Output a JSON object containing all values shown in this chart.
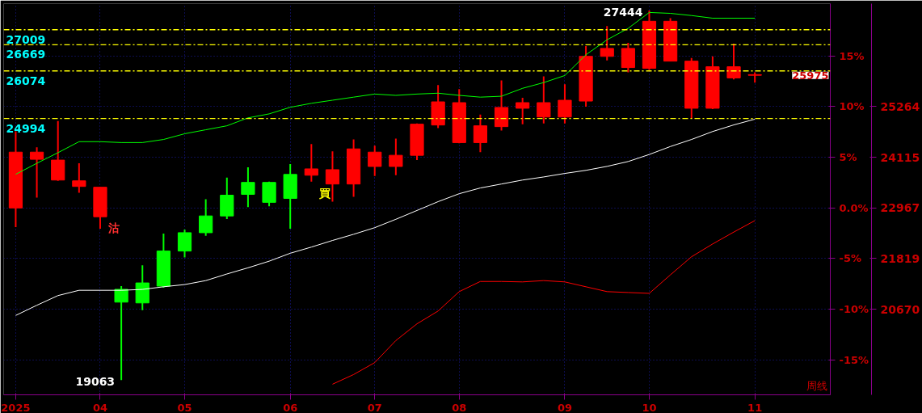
{
  "chart_data": {
    "type": "candlestick",
    "x": [
      "2025-03-07",
      "2025-03-14",
      "2025-03-21",
      "2025-03-28",
      "2025-04-04",
      "2025-04-11",
      "2025-04-18",
      "2025-04-25",
      "2025-05-02",
      "2025-05-09",
      "2025-05-16",
      "2025-05-23",
      "2025-05-30",
      "2025-06-06",
      "2025-06-13",
      "2025-06-20",
      "2025-06-27",
      "2025-07-04",
      "2025-07-11",
      "2025-07-18",
      "2025-07-25",
      "2025-08-01",
      "2025-08-08",
      "2025-08-15",
      "2025-08-22",
      "2025-08-29",
      "2025-09-05",
      "2025-09-12",
      "2025-09-19",
      "2025-09-26",
      "2025-10-03",
      "2025-10-10",
      "2025-10-17",
      "2025-10-24",
      "2025-10-31",
      "2025-11-07"
    ],
    "ohlc": [
      [
        24233,
        24704,
        22533,
        22967
      ],
      [
        24233,
        24342,
        23202,
        24070
      ],
      [
        24052,
        24939,
        23582,
        23600
      ],
      [
        23582,
        23980,
        23311,
        23455
      ],
      [
        23437,
        23437,
        22497,
        22768
      ],
      [
        20832,
        21194,
        19063,
        21122
      ],
      [
        20814,
        21665,
        20651,
        21267
      ],
      [
        21194,
        22388,
        21158,
        21990
      ],
      [
        21990,
        22479,
        21845,
        22406
      ],
      [
        22406,
        23166,
        22334,
        22786
      ],
      [
        22786,
        23654,
        22714,
        23256
      ],
      [
        23275,
        23890,
        22985,
        23546
      ],
      [
        23094,
        23564,
        23003,
        23546
      ],
      [
        23184,
        23962,
        22497,
        23727
      ],
      [
        23853,
        24414,
        23564,
        23709
      ],
      [
        23835,
        24251,
        23112,
        23510
      ],
      [
        24306,
        24523,
        23220,
        23510
      ],
      [
        24233,
        24378,
        23691,
        23908
      ],
      [
        24161,
        24541,
        23709,
        23908
      ],
      [
        24867,
        24885,
        24052,
        24161
      ],
      [
        25373,
        25753,
        24776,
        24848
      ],
      [
        25355,
        25662,
        24432,
        24450
      ],
      [
        24830,
        25084,
        24233,
        24450
      ],
      [
        25246,
        25861,
        24722,
        24812
      ],
      [
        25355,
        25463,
        24867,
        25228
      ],
      [
        25355,
        25952,
        24885,
        25029
      ],
      [
        25409,
        25771,
        24885,
        25029
      ],
      [
        26404,
        26639,
        25264,
        25391
      ],
      [
        26585,
        27092,
        26314,
        26404
      ],
      [
        26585,
        26712,
        26042,
        26151
      ],
      [
        27200,
        27444,
        26097,
        26133
      ],
      [
        27200,
        27272,
        26296,
        26296
      ],
      [
        26296,
        26368,
        24993,
        25228
      ],
      [
        26169,
        26404,
        25210,
        25228
      ],
      [
        26169,
        26694,
        25880,
        25916
      ],
      [
        25990,
        26042,
        25807,
        25975
      ]
    ],
    "colors": [
      "#ff0000",
      "#ff0000",
      "#ff0000",
      "#ff0000",
      "#ff0000",
      "#00ff00",
      "#00ff00",
      "#00ff00",
      "#00ff00",
      "#00ff00",
      "#00ff00",
      "#00ff00",
      "#00ff00",
      "#00ff00",
      "#ff0000",
      "#ff0000",
      "#ff0000",
      "#ff0000",
      "#ff0000",
      "#ff0000",
      "#ff0000",
      "#ff0000",
      "#ff0000",
      "#ff0000",
      "#ff0000",
      "#ff0000",
      "#ff0000",
      "#ff0000",
      "#ff0000",
      "#ff0000",
      "#ff0000",
      "#ff0000",
      "#ff0000",
      "#ff0000",
      "#ff0000",
      "#ff0000"
    ],
    "series": [
      {
        "type": "line",
        "color": "#00ff00",
        "values": [
          23730,
          23980,
          24220,
          24470,
          24470,
          24450,
          24450,
          24520,
          24650,
          24740,
          24830,
          25010,
          25100,
          25250,
          25340,
          25410,
          25480,
          25550,
          25520,
          25550,
          25570,
          25520,
          25480,
          25500,
          25680,
          25810,
          25970,
          26440,
          26780,
          27040,
          27400,
          27380,
          27330,
          27270,
          27270,
          27270
        ]
      },
      {
        "type": "line",
        "color": "#ffffff",
        "values": [
          20530,
          20760,
          20980,
          21100,
          21100,
          21100,
          21120,
          21180,
          21230,
          21320,
          21470,
          21610,
          21760,
          21940,
          22080,
          22230,
          22370,
          22520,
          22710,
          22910,
          23110,
          23290,
          23420,
          23510,
          23600,
          23670,
          23750,
          23820,
          23910,
          24020,
          24180,
          24360,
          24520,
          24700,
          24850,
          24980
        ]
      },
      {
        "type": "line",
        "color": "#ff0000",
        "x": [
          "2025-06-20",
          "2025-06-27",
          "2025-07-04",
          "2025-07-11",
          "2025-07-18",
          "2025-07-25",
          "2025-08-01",
          "2025-08-08",
          "2025-08-15",
          "2025-08-22",
          "2025-08-29",
          "2025-09-05",
          "2025-09-12",
          "2025-09-19",
          "2025-09-26",
          "2025-10-03",
          "2025-10-10",
          "2025-10-17",
          "2025-10-24",
          "2025-10-31",
          "2025-11-07"
        ],
        "values": [
          18970,
          19190,
          19460,
          19960,
          20340,
          20630,
          21070,
          21300,
          21300,
          21290,
          21320,
          21290,
          21180,
          21070,
          21050,
          21030,
          21450,
          21860,
          22150,
          22420,
          22680
        ]
      }
    ],
    "xlim": [
      "2025-03-03",
      "2025-12-02"
    ],
    "xticks": [
      {
        "value": "2025-03-07",
        "label": "2025"
      },
      {
        "value": "2025-04-04",
        "label": "04"
      },
      {
        "value": "2025-05-02",
        "label": "05"
      },
      {
        "value": "2025-06-06",
        "label": "06"
      },
      {
        "value": "2025-07-04",
        "label": "07"
      },
      {
        "value": "2025-08-01",
        "label": "08"
      },
      {
        "value": "2025-09-05",
        "label": "09"
      },
      {
        "value": "2025-10-03",
        "label": "10"
      },
      {
        "value": "2025-11-07",
        "label": "11"
      }
    ],
    "ylim": [
      18730,
      27600
    ],
    "yticks": [
      20670,
      21819,
      22967,
      24115,
      25264
    ],
    "y2lim": [
      -18.45,
      20.17
    ],
    "y2ticks": [
      {
        "value": -15,
        "label": "-15%"
      },
      {
        "value": -10,
        "label": "-10%"
      },
      {
        "value": -5,
        "label": "-5%"
      },
      {
        "value": 0,
        "label": "0.0%"
      },
      {
        "value": 5,
        "label": "5%"
      },
      {
        "value": 10,
        "label": "10%"
      },
      {
        "value": 15,
        "label": "15%"
      }
    ],
    "grid": true,
    "ref_lines": [
      {
        "axis": "y",
        "value": 27009,
        "label": "27009",
        "color": "#ffff00",
        "line_style": "dashed"
      },
      {
        "axis": "y",
        "value": 26669,
        "label": "26669",
        "color": "#ffff00",
        "line_style": "dashed"
      },
      {
        "axis": "y",
        "value": 26074,
        "label": "26074",
        "color": "#ffff00",
        "line_style": "dashed"
      },
      {
        "axis": "y",
        "value": 24994,
        "label": "24994",
        "color": "#ffff00",
        "line_style": "dashed"
      }
    ],
    "annotations": [
      {
        "text": "27444",
        "x": "2025-10-03",
        "y": 27444
      },
      {
        "text": "19063",
        "x": "2025-04-11",
        "y": 19063
      },
      {
        "text": "沽",
        "x": "2025-04-04",
        "y": 22768
      },
      {
        "text": "買",
        "x": "2025-06-13",
        "y": 23564
      },
      "25975",
      "周线"
    ]
  }
}
